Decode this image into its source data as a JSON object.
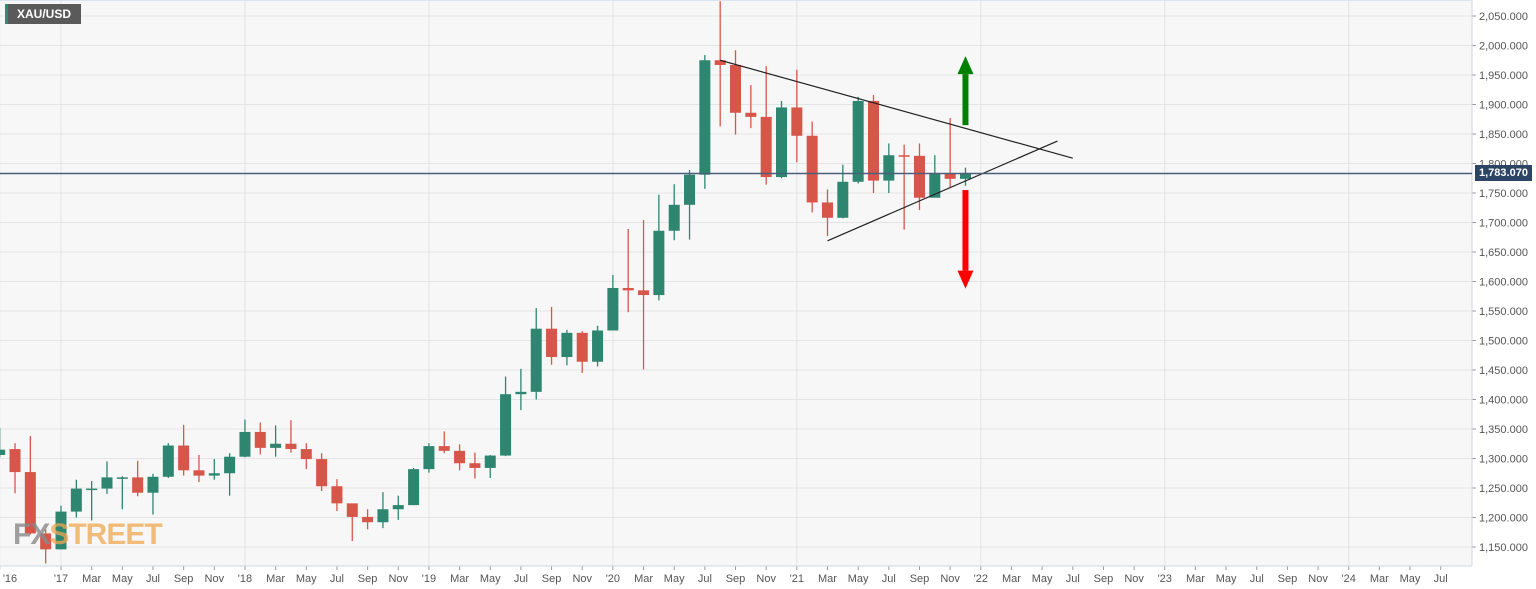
{
  "chart_data": {
    "type": "candlestick",
    "symbol": "XAU/USD",
    "current_price": "1,783.070",
    "current_price_value": 1783.07,
    "ylim": [
      1120,
      2080
    ],
    "yticks": [
      1150,
      1200,
      1250,
      1300,
      1350,
      1400,
      1450,
      1500,
      1550,
      1600,
      1650,
      1700,
      1750,
      1800,
      1850,
      1900,
      1950,
      2000,
      2050
    ],
    "ytick_labels": [
      "1,150.000",
      "1,200.000",
      "1,250.000",
      "1,300.000",
      "1,350.000",
      "1,400.000",
      "1,450.000",
      "1,500.000",
      "1,550.000",
      "1,600.000",
      "1,650.000",
      "1,700.000",
      "1,750.000",
      "1,800.000",
      "1,850.000",
      "1,900.000",
      "1,950.000",
      "2,000.000",
      "2,050.000"
    ],
    "x_unit": "months since Jan 2017",
    "xticks": [
      {
        "m": -4,
        "label": "'16"
      },
      {
        "m": 0,
        "label": "'17"
      },
      {
        "m": 2,
        "label": "Mar"
      },
      {
        "m": 4,
        "label": "May"
      },
      {
        "m": 6,
        "label": "Jul"
      },
      {
        "m": 8,
        "label": "Sep"
      },
      {
        "m": 10,
        "label": "Nov"
      },
      {
        "m": 12,
        "label": "'18"
      },
      {
        "m": 14,
        "label": "Mar"
      },
      {
        "m": 16,
        "label": "May"
      },
      {
        "m": 18,
        "label": "Jul"
      },
      {
        "m": 20,
        "label": "Sep"
      },
      {
        "m": 22,
        "label": "Nov"
      },
      {
        "m": 24,
        "label": "'19"
      },
      {
        "m": 26,
        "label": "Mar"
      },
      {
        "m": 28,
        "label": "May"
      },
      {
        "m": 30,
        "label": "Jul"
      },
      {
        "m": 32,
        "label": "Sep"
      },
      {
        "m": 34,
        "label": "Nov"
      },
      {
        "m": 36,
        "label": "'20"
      },
      {
        "m": 38,
        "label": "Mar"
      },
      {
        "m": 40,
        "label": "May"
      },
      {
        "m": 42,
        "label": "Jul"
      },
      {
        "m": 44,
        "label": "Sep"
      },
      {
        "m": 46,
        "label": "Nov"
      },
      {
        "m": 48,
        "label": "'21"
      },
      {
        "m": 50,
        "label": "Mar"
      },
      {
        "m": 52,
        "label": "May"
      },
      {
        "m": 54,
        "label": "Jul"
      },
      {
        "m": 56,
        "label": "Sep"
      },
      {
        "m": 58,
        "label": "Nov"
      },
      {
        "m": 60,
        "label": "'22"
      },
      {
        "m": 62,
        "label": "Mar"
      },
      {
        "m": 64,
        "label": "May"
      },
      {
        "m": 66,
        "label": "Jul"
      },
      {
        "m": 68,
        "label": "Sep"
      },
      {
        "m": 70,
        "label": "Nov"
      },
      {
        "m": 72,
        "label": "'23"
      },
      {
        "m": 74,
        "label": "Mar"
      },
      {
        "m": 76,
        "label": "May"
      },
      {
        "m": 78,
        "label": "Jul"
      },
      {
        "m": 80,
        "label": "Sep"
      },
      {
        "m": 82,
        "label": "Nov"
      },
      {
        "m": 84,
        "label": "'24"
      },
      {
        "m": 86,
        "label": "Mar"
      },
      {
        "m": 88,
        "label": "May"
      },
      {
        "m": 90,
        "label": "Jul"
      }
    ],
    "xlim": [
      -4,
      92
    ],
    "first_candle_month": -4,
    "candles_ohlc": [
      [
        1306,
        1352,
        1302,
        1315
      ],
      [
        1316,
        1326,
        1241,
        1277
      ],
      [
        1277,
        1338,
        1171,
        1173
      ],
      [
        1173,
        1180,
        1122,
        1146
      ],
      [
        1146,
        1220,
        1146,
        1210
      ],
      [
        1210,
        1264,
        1200,
        1249
      ],
      [
        1249,
        1262,
        1195,
        1249
      ],
      [
        1249,
        1295,
        1240,
        1268
      ],
      [
        1268,
        1270,
        1214,
        1268
      ],
      [
        1268,
        1296,
        1236,
        1242
      ],
      [
        1242,
        1274,
        1205,
        1269
      ],
      [
        1269,
        1326,
        1267,
        1322
      ],
      [
        1322,
        1357,
        1271,
        1280
      ],
      [
        1280,
        1306,
        1260,
        1271
      ],
      [
        1271,
        1299,
        1264,
        1275
      ],
      [
        1275,
        1309,
        1237,
        1303
      ],
      [
        1303,
        1366,
        1302,
        1345
      ],
      [
        1345,
        1361,
        1307,
        1318
      ],
      [
        1318,
        1356,
        1303,
        1325
      ],
      [
        1325,
        1365,
        1310,
        1316
      ],
      [
        1316,
        1326,
        1282,
        1299
      ],
      [
        1299,
        1309,
        1245,
        1253
      ],
      [
        1253,
        1265,
        1211,
        1224
      ],
      [
        1224,
        1221,
        1160,
        1201
      ],
      [
        1201,
        1214,
        1180,
        1192
      ],
      [
        1192,
        1243,
        1182,
        1214
      ],
      [
        1214,
        1237,
        1196,
        1221
      ],
      [
        1221,
        1284,
        1221,
        1282
      ],
      [
        1282,
        1326,
        1276,
        1321
      ],
      [
        1321,
        1346,
        1309,
        1313
      ],
      [
        1313,
        1324,
        1280,
        1292
      ],
      [
        1292,
        1310,
        1266,
        1284
      ],
      [
        1284,
        1306,
        1267,
        1305
      ],
      [
        1305,
        1439,
        1304,
        1409
      ],
      [
        1409,
        1452,
        1382,
        1413
      ],
      [
        1413,
        1555,
        1400,
        1520
      ],
      [
        1520,
        1557,
        1459,
        1472
      ],
      [
        1472,
        1518,
        1458,
        1513
      ],
      [
        1513,
        1516,
        1445,
        1464
      ],
      [
        1464,
        1525,
        1456,
        1517
      ],
      [
        1517,
        1611,
        1517,
        1589
      ],
      [
        1589,
        1689,
        1548,
        1585
      ],
      [
        1585,
        1704,
        1451,
        1577
      ],
      [
        1577,
        1747,
        1568,
        1686
      ],
      [
        1686,
        1765,
        1670,
        1730
      ],
      [
        1730,
        1789,
        1671,
        1781
      ],
      [
        1781,
        1984,
        1757,
        1975
      ],
      [
        1975,
        2075,
        1863,
        1967
      ],
      [
        1967,
        1992,
        1849,
        1886
      ],
      [
        1886,
        1933,
        1860,
        1879
      ],
      [
        1879,
        1965,
        1764,
        1777
      ],
      [
        1777,
        1906,
        1775,
        1895
      ],
      [
        1895,
        1959,
        1802,
        1847
      ],
      [
        1847,
        1871,
        1717,
        1734
      ],
      [
        1734,
        1756,
        1677,
        1708
      ],
      [
        1708,
        1798,
        1707,
        1769
      ],
      [
        1769,
        1913,
        1766,
        1906
      ],
      [
        1906,
        1916,
        1750,
        1771
      ],
      [
        1771,
        1834,
        1750,
        1814
      ],
      [
        1814,
        1832,
        1688,
        1813
      ],
      [
        1813,
        1834,
        1721,
        1742
      ],
      [
        1742,
        1814,
        1746,
        1783
      ],
      [
        1783,
        1877,
        1758,
        1774
      ],
      [
        1774,
        1793,
        1762,
        1783
      ]
    ],
    "trendlines": [
      {
        "name": "upper",
        "from": [
          43,
          1975
        ],
        "to": [
          66,
          1809
        ]
      },
      {
        "name": "lower",
        "from": [
          50,
          1669
        ],
        "to": [
          65,
          1838
        ]
      }
    ],
    "arrows": [
      {
        "name": "bullish-arrow",
        "m": 59,
        "from": 1865,
        "to": 1982,
        "color": "#008000"
      },
      {
        "name": "bearish-arrow",
        "m": 59,
        "from": 1755,
        "to": 1588,
        "color": "#ff0000"
      }
    ],
    "colors": {
      "up": "#2e8670",
      "down": "#d6564a",
      "grid": "#e4e4e6",
      "bg": "#f7f7f7",
      "price_line": "#4a5f7a"
    }
  },
  "watermark": {
    "fx": "FX",
    "street": "STREET"
  }
}
